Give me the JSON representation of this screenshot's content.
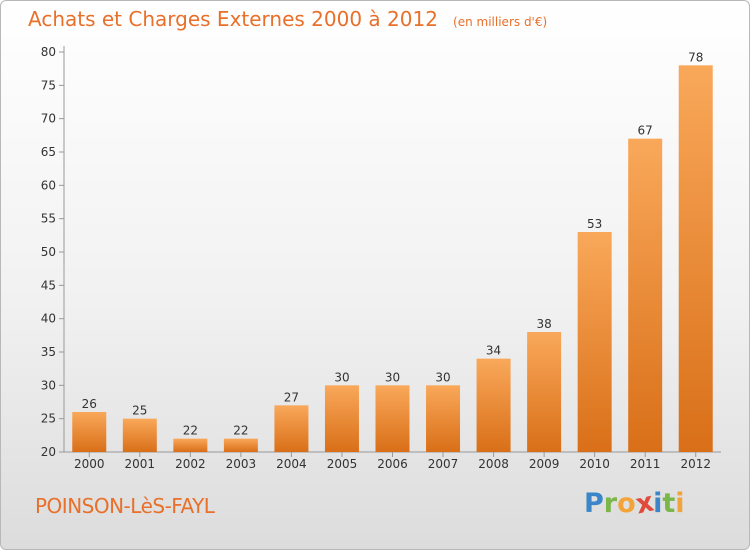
{
  "title": "Achats et Charges Externes 2000 à 2012",
  "subtitle": "(en milliers d'€)",
  "place": "POINSON-LèS-FAYL",
  "logo": {
    "letters": [
      "P",
      "r",
      "o",
      "x",
      "i",
      "t",
      "i"
    ],
    "colors": [
      "#3a86c8",
      "#7ab648",
      "#f2a33a",
      "#e04a3a",
      "#3a86c8",
      "#7ab648",
      "#f2a33a"
    ]
  },
  "colors": {
    "bar_top": "#f9a85a",
    "bar_bottom": "#d96f18",
    "accent": "#e8702a"
  },
  "chart_data": {
    "type": "bar",
    "categories": [
      "2000",
      "2001",
      "2002",
      "2003",
      "2004",
      "2005",
      "2006",
      "2007",
      "2008",
      "2009",
      "2010",
      "2011",
      "2012"
    ],
    "values": [
      26,
      25,
      22,
      22,
      27,
      30,
      30,
      30,
      34,
      38,
      53,
      67,
      78
    ],
    "ylim": [
      20,
      80
    ],
    "yticks": [
      20,
      25,
      30,
      35,
      40,
      45,
      50,
      55,
      60,
      65,
      70,
      75,
      80
    ],
    "grid": false
  }
}
